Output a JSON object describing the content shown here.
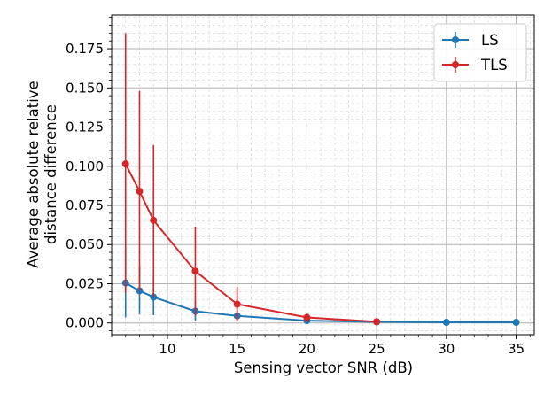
{
  "chart_data": {
    "type": "line",
    "title": "",
    "xlabel": "Sensing vector SNR (dB)",
    "ylabel_lines": [
      "Average absolute relative",
      "distance difference"
    ],
    "xlim": [
      6.0,
      36.3
    ],
    "ylim": [
      -0.0075,
      0.1965
    ],
    "x_ticks": [
      10,
      15,
      20,
      25,
      30,
      35
    ],
    "x_tick_labels": [
      "10",
      "15",
      "20",
      "25",
      "30",
      "35"
    ],
    "y_ticks": [
      0.0,
      0.025,
      0.05,
      0.075,
      0.1,
      0.125,
      0.15,
      0.175
    ],
    "y_tick_labels": [
      "0.000",
      "0.025",
      "0.050",
      "0.075",
      "0.100",
      "0.125",
      "0.150",
      "0.175"
    ],
    "grid": true,
    "minor_grid": true,
    "legend_position": "top-right",
    "series": [
      {
        "name": "LS",
        "color": "#1f77b4",
        "x": [
          7,
          8,
          9,
          12,
          15,
          20,
          25,
          30,
          35
        ],
        "y": [
          0.0255,
          0.0205,
          0.0165,
          0.0075,
          0.0045,
          0.0015,
          0.0007,
          0.0004,
          0.0004
        ],
        "y_low": [
          0.0035,
          0.0055,
          0.005,
          0.001,
          0.001,
          0.0004,
          0.0002,
          0.0001,
          0.0001
        ],
        "y_high": [
          0.0475,
          0.0365,
          0.0285,
          0.0145,
          0.008,
          0.0027,
          0.0012,
          0.0007,
          0.0007
        ]
      },
      {
        "name": "TLS",
        "color": "#d62728",
        "x": [
          7,
          8,
          9,
          12,
          15,
          20,
          25
        ],
        "y": [
          0.1015,
          0.084,
          0.0655,
          0.033,
          0.012,
          0.0035,
          0.0008
        ],
        "y_low": [
          0.0195,
          0.0205,
          0.0165,
          0.0045,
          0.001,
          0.0005,
          0.0002
        ],
        "y_high": [
          0.185,
          0.148,
          0.1135,
          0.0615,
          0.023,
          0.0065,
          0.0014
        ]
      }
    ]
  }
}
